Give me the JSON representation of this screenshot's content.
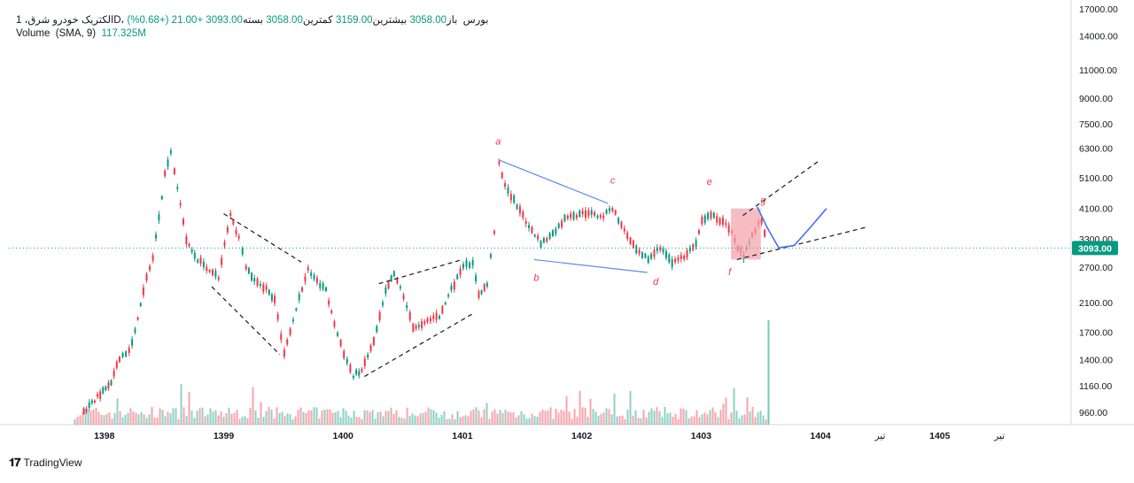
{
  "legend": {
    "symbol": "الکتریک خودرو شرق، 1D، بورس",
    "open_label": "باز",
    "open_value": "3058.00",
    "high_label": "بیشترین",
    "high_value": "3159.00",
    "low_label": "کمترین",
    "low_value": "3058.00",
    "close_label": "بسته",
    "close_value": "3093.00",
    "change": "+21.00 (+0.68%)",
    "volume_label": "Volume",
    "volume_params": "(SMA, 9)",
    "volume_value": "117.325M"
  },
  "price_badge": "3093.00",
  "brand": "TradingView",
  "colors": {
    "up": "#089981",
    "down": "#f23645",
    "price_line": "#089981",
    "trend_blue": "#5b8def",
    "dashed": "#131722",
    "zone": "#f4a0a8",
    "wave_label": "#f23645",
    "projection": "#4a72f0"
  },
  "chart_data": {
    "type": "candlestick",
    "y_scale": "log",
    "y_ticks": [
      960,
      1160,
      1400,
      1700,
      2100,
      2700,
      3300,
      4100,
      5100,
      6300,
      7500,
      9000,
      11000,
      14000,
      17000
    ],
    "y_tick_labels": [
      "960.00",
      "1160.00",
      "1400.00",
      "1700.00",
      "2100.00",
      "2700.00",
      "3300.00",
      "4100.00",
      "5100.00",
      "6300.00",
      "7500.00",
      "9000.00",
      "11000.00",
      "14000.00",
      "17000.00"
    ],
    "x_ticks": [
      1398,
      1399,
      1400,
      1401,
      1402,
      1403,
      1404,
      "تیر",
      1405,
      "تیر"
    ],
    "x_tick_labels": [
      "1398",
      "1399",
      "1400",
      "1401",
      "1402",
      "1403",
      "1404",
      "تیر",
      "1405",
      "تیر"
    ],
    "x_tick_positions": [
      1398,
      1399,
      1400,
      1401,
      1402,
      1403,
      1404,
      1404.5,
      1405,
      1405.5
    ],
    "x_range": [
      1397.2,
      1406.1
    ],
    "y_range": [
      880,
      17200
    ],
    "last_close": 3093,
    "price_path": [
      [
        1397.82,
        960
      ],
      [
        1398.05,
        1200
      ],
      [
        1398.12,
        1400
      ],
      [
        1398.2,
        1500
      ],
      [
        1398.25,
        1700
      ],
      [
        1398.32,
        2300
      ],
      [
        1398.4,
        2900
      ],
      [
        1398.45,
        3800
      ],
      [
        1398.5,
        5200
      ],
      [
        1398.55,
        6100
      ],
      [
        1398.58,
        5400
      ],
      [
        1398.63,
        4200
      ],
      [
        1398.68,
        3300
      ],
      [
        1398.75,
        2900
      ],
      [
        1398.85,
        2700
      ],
      [
        1398.95,
        2500
      ],
      [
        1399.0,
        3200
      ],
      [
        1399.05,
        3900
      ],
      [
        1399.12,
        3300
      ],
      [
        1399.18,
        2700
      ],
      [
        1399.25,
        2450
      ],
      [
        1399.35,
        2300
      ],
      [
        1399.42,
        2150
      ],
      [
        1399.5,
        1450
      ],
      [
        1399.6,
        2000
      ],
      [
        1399.7,
        2700
      ],
      [
        1399.75,
        2500
      ],
      [
        1399.85,
        2300
      ],
      [
        1399.92,
        1800
      ],
      [
        1400.0,
        1450
      ],
      [
        1400.08,
        1250
      ],
      [
        1400.15,
        1300
      ],
      [
        1400.25,
        1600
      ],
      [
        1400.35,
        2300
      ],
      [
        1400.42,
        2600
      ],
      [
        1400.5,
        2200
      ],
      [
        1400.58,
        1750
      ],
      [
        1400.7,
        1850
      ],
      [
        1400.8,
        1900
      ],
      [
        1400.9,
        2300
      ],
      [
        1401.0,
        2700
      ],
      [
        1401.08,
        2800
      ],
      [
        1401.13,
        2200
      ],
      [
        1401.2,
        2400
      ],
      [
        1401.26,
        3500
      ],
      [
        1401.3,
        5700
      ],
      [
        1401.35,
        4800
      ],
      [
        1401.45,
        4200
      ],
      [
        1401.55,
        3600
      ],
      [
        1401.65,
        3200
      ],
      [
        1401.75,
        3400
      ],
      [
        1401.85,
        3800
      ],
      [
        1401.95,
        3900
      ],
      [
        1402.05,
        4000
      ],
      [
        1402.15,
        3850
      ],
      [
        1402.25,
        4100
      ],
      [
        1402.35,
        3500
      ],
      [
        1402.45,
        3100
      ],
      [
        1402.55,
        2850
      ],
      [
        1402.65,
        3100
      ],
      [
        1402.75,
        2800
      ],
      [
        1402.85,
        2900
      ],
      [
        1402.95,
        3200
      ],
      [
        1403.0,
        3800
      ],
      [
        1403.1,
        3900
      ],
      [
        1403.2,
        3650
      ],
      [
        1403.25,
        3500
      ],
      [
        1403.3,
        3100
      ],
      [
        1403.35,
        2900
      ],
      [
        1403.42,
        3400
      ],
      [
        1403.5,
        3800
      ],
      [
        1403.55,
        3093
      ]
    ],
    "volume_bars_hint": "volume histogram at bottom, spike at latest bar",
    "annotations": [
      {
        "text": "a",
        "x": 1401.3,
        "y": 6450
      },
      {
        "text": "b",
        "x": 1401.62,
        "y": 2450
      },
      {
        "text": "c",
        "x": 1402.26,
        "y": 4900
      },
      {
        "text": "d",
        "x": 1402.62,
        "y": 2380
      },
      {
        "text": "e",
        "x": 1403.07,
        "y": 4850
      },
      {
        "text": "f",
        "x": 1403.24,
        "y": 2550
      },
      {
        "text": "g",
        "x": 1403.52,
        "y": 4250
      }
    ],
    "trendlines": [
      {
        "style": "solid",
        "color": "blue",
        "from": [
          1401.3,
          5800
        ],
        "to": [
          1402.22,
          4250
        ]
      },
      {
        "style": "solid",
        "color": "blue",
        "from": [
          1401.6,
          2850
        ],
        "to": [
          1402.55,
          2600
        ]
      },
      {
        "style": "dashed",
        "from": [
          1399.0,
          3950
        ],
        "to": [
          1399.65,
          2800
        ]
      },
      {
        "style": "dashed",
        "from": [
          1398.9,
          2350
        ],
        "to": [
          1399.47,
          1450
        ]
      },
      {
        "style": "dashed",
        "from": [
          1400.3,
          2400
        ],
        "to": [
          1401.0,
          2850
        ]
      },
      {
        "style": "dashed",
        "from": [
          1400.18,
          1240
        ],
        "to": [
          1401.1,
          1950
        ]
      },
      {
        "style": "dashed",
        "from": [
          1403.35,
          3900
        ],
        "to": [
          1404.0,
          5800
        ]
      },
      {
        "style": "dashed",
        "from": [
          1403.3,
          2850
        ],
        "to": [
          1404.4,
          3600
        ]
      }
    ],
    "zone": {
      "x0": 1403.25,
      "x1": 1403.5,
      "y0": 2850,
      "y1": 4100
    },
    "projection_curve": [
      [
        1403.47,
        4150
      ],
      [
        1403.55,
        3600
      ],
      [
        1403.65,
        3100
      ],
      [
        1403.78,
        3150
      ],
      [
        1403.92,
        3600
      ],
      [
        1404.05,
        4100
      ]
    ]
  }
}
